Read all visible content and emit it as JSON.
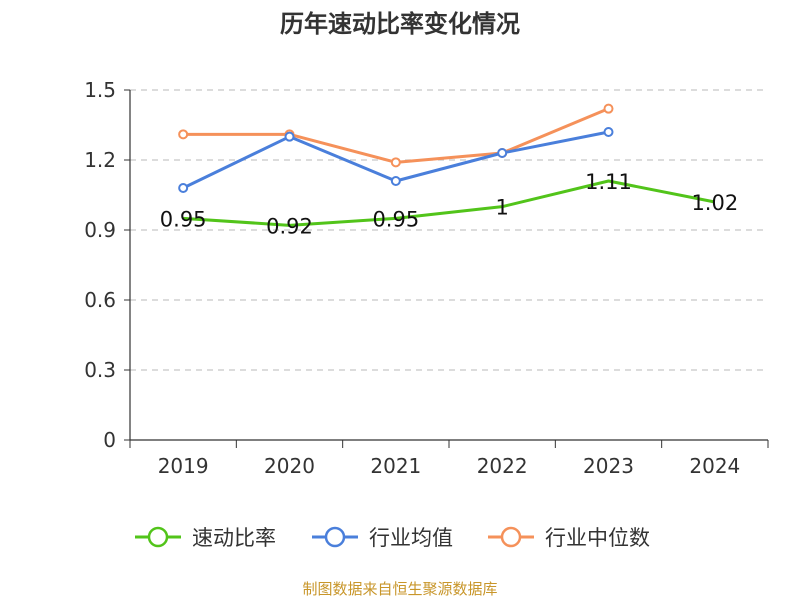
{
  "chart_data": {
    "type": "line",
    "title": "历年速动比率变化情况",
    "categories": [
      "2019",
      "2020",
      "2021",
      "2022",
      "2023",
      "2024"
    ],
    "ylim": [
      0,
      1.5
    ],
    "yticks": [
      "0",
      "0.3",
      "0.6",
      "0.9",
      "1.2",
      "1.5"
    ],
    "grid": true,
    "legend_position": "bottom",
    "series": [
      {
        "name": "速动比率",
        "color": "#52c41a",
        "values": [
          0.95,
          0.92,
          0.95,
          1.0,
          1.11,
          1.02
        ],
        "labels": [
          "0.95",
          "0.92",
          "0.95",
          "1",
          "1.11",
          "1.02"
        ]
      },
      {
        "name": "行业均值",
        "color": "#4a7fdb",
        "values": [
          1.08,
          1.3,
          1.11,
          1.23,
          1.32,
          null
        ]
      },
      {
        "name": "行业中位数",
        "color": "#f5915a",
        "values": [
          1.31,
          1.31,
          1.19,
          1.23,
          1.42,
          null
        ]
      }
    ],
    "source": "制图数据来自恒生聚源数据库"
  }
}
